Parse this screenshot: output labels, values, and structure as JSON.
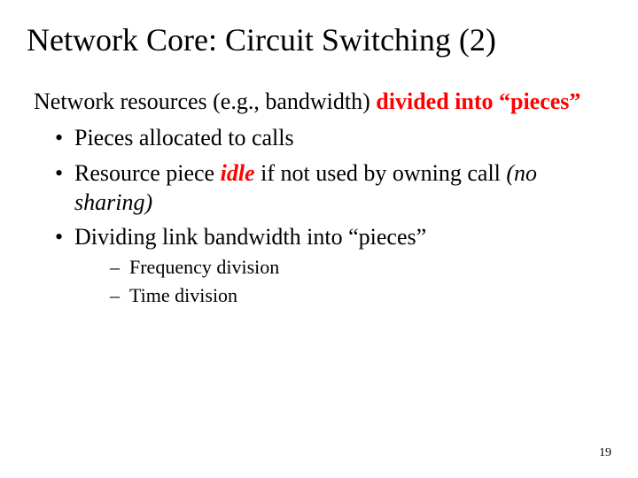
{
  "title": "Network Core: Circuit Switching (2)",
  "intro": {
    "plain": "Network resources (e.g., bandwidth) ",
    "emph": "divided into “pieces”"
  },
  "bullets": [
    {
      "text": "Pieces allocated to calls"
    },
    {
      "pre": "Resource piece ",
      "emph": "idle",
      "mid": " if not used by owning call ",
      "tail": "(no sharing)"
    },
    {
      "text": "Dividing link bandwidth into “pieces”",
      "sub": [
        "Frequency division",
        "Time division"
      ]
    }
  ],
  "page_number": "19",
  "colors": {
    "emph": "#ff0000",
    "text": "#000000",
    "bg": "#ffffff"
  }
}
